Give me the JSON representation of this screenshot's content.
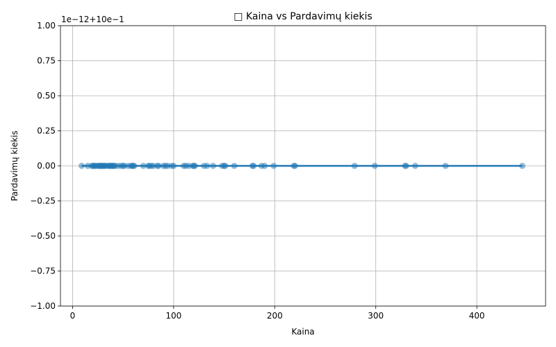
{
  "chart_data": {
    "type": "scatter",
    "title": "□ Kaina vs Pardavimų kiekis",
    "xlabel": "Kaina",
    "ylabel": "Pardavimų kiekis",
    "y_offset_text": "1e−12+10e−1",
    "xlim": [
      -12,
      468
    ],
    "ylim": [
      -1.0,
      1.0
    ],
    "xticks": [
      0,
      100,
      200,
      300,
      400
    ],
    "xtick_labels": [
      "0",
      "100",
      "200",
      "300",
      "400"
    ],
    "yticks": [
      1.0,
      0.75,
      0.5,
      0.25,
      0.0,
      -0.25,
      -0.5,
      -0.75,
      -1.0
    ],
    "ytick_labels": [
      "1.00",
      "0.75",
      "0.50",
      "0.25",
      "0.00",
      "−0.25",
      "−0.50",
      "−0.75",
      "−1.00"
    ],
    "grid": true,
    "point_color": "#1f77b4",
    "line_color": "#1f77b4",
    "trend_line": {
      "x": [
        9,
        445
      ],
      "y": [
        0,
        0
      ]
    },
    "series": [
      {
        "x": [
          9,
          15,
          19,
          20,
          21,
          22,
          23,
          25,
          26,
          27,
          28,
          29,
          30,
          31,
          32,
          33,
          35,
          36,
          37,
          38,
          39,
          40,
          41,
          42,
          45,
          48,
          50,
          51,
          55,
          58,
          59,
          60,
          61,
          70,
          75,
          76,
          78,
          80,
          84,
          85,
          90,
          92,
          94,
          98,
          100,
          110,
          112,
          115,
          119,
          120,
          121,
          130,
          133,
          139,
          148,
          150,
          151,
          160,
          178,
          179,
          187,
          190,
          199,
          219,
          220,
          279,
          299,
          329,
          330,
          339,
          369,
          445
        ],
        "y": [
          0,
          0,
          0,
          0,
          0,
          0,
          0,
          0,
          0,
          0,
          0,
          0,
          0,
          0,
          0,
          0,
          0,
          0,
          0,
          0,
          0,
          0,
          0,
          0,
          0,
          0,
          0,
          0,
          0,
          0,
          0,
          0,
          0,
          0,
          0,
          0,
          0,
          0,
          0,
          0,
          0,
          0,
          0,
          0,
          0,
          0,
          0,
          0,
          0,
          0,
          0,
          0,
          0,
          0,
          0,
          0,
          0,
          0,
          0,
          0,
          0,
          0,
          0,
          0,
          0,
          0,
          0,
          0,
          0,
          0,
          0,
          0
        ]
      }
    ]
  }
}
